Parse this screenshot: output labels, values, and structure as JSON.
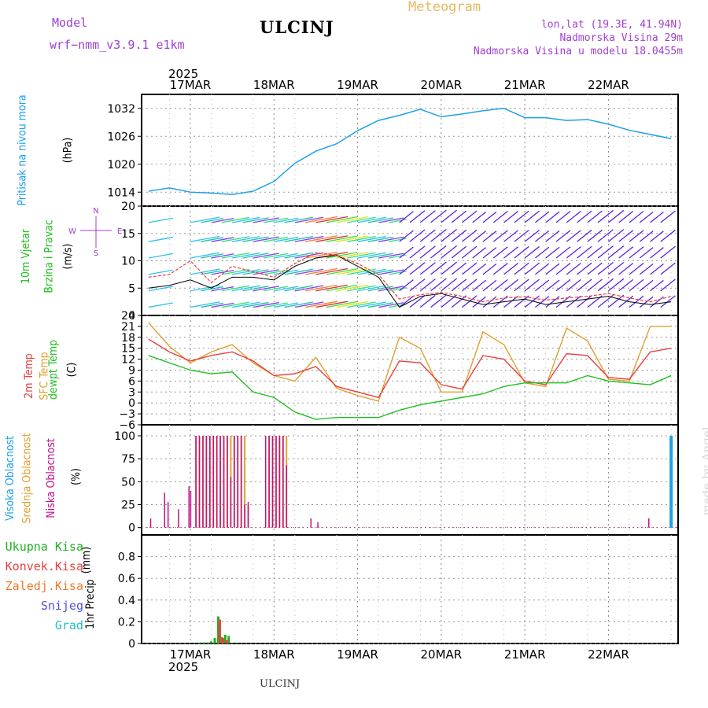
{
  "header": {
    "model_label": "Model",
    "model_value": "wrf−nmm_v3.9.1  e1km",
    "station": "ULCINJ",
    "meteogram": "Meteogram",
    "lonlat": "lon,lat (19.3E, 41.94N)",
    "elev": "Nadmorska Visina 29m",
    "elev_model": "Nadmorska Visina u modelu 18.0455m",
    "year_top": "2025",
    "year_bottom": "2025",
    "footer_station": "ULCINJ",
    "credit": "made by Angel"
  },
  "colors": {
    "pressure": "#1ea0e8",
    "temp2m": "#e84040",
    "sfc": "#e0a030",
    "dewpt": "#20c020",
    "high_cloud": "#1ea0e8",
    "mid_cloud": "#e0a030",
    "low_cloud": "#c0108a",
    "precip_total": "#20b020",
    "precip_conv": "#e84040",
    "precip_frz": "#f07828",
    "snow": "#5050e0",
    "graupel": "#20c0c0"
  },
  "chart_data": [
    {
      "type": "line",
      "panel": "pressure",
      "ylabel": "Pritisak na nivou mora",
      "unit": "(hPa)",
      "ylim": [
        1011,
        1035
      ],
      "yticks": [
        1014,
        1020,
        1026,
        1032
      ],
      "x_dates": [
        "17MAR",
        "18MAR",
        "19MAR",
        "20MAR",
        "21MAR",
        "22MAR"
      ],
      "x_hours": [
        -12,
        -6,
        0,
        6,
        12,
        18,
        24,
        30,
        36,
        42,
        48,
        54,
        60,
        66,
        72,
        78,
        84,
        90,
        96,
        102,
        108,
        114,
        120,
        126,
        132,
        138
      ],
      "series": [
        {
          "values": [
            1014.2,
            1014.9,
            1014.0,
            1013.8,
            1013.5,
            1014.2,
            1016.3,
            1020.2,
            1022.8,
            1024.4,
            1027.2,
            1029.4,
            1030.5,
            1031.8,
            1030.2,
            1030.8,
            1031.5,
            1032.0,
            1030.0,
            1030.0,
            1029.4,
            1029.6,
            1028.6,
            1027.3,
            1026.4,
            1025.5
          ]
        }
      ],
      "grid": true
    },
    {
      "type": "line",
      "panel": "wind",
      "ylabel": "10m Vjetar Brzina i Pravac",
      "unit": "(m/s)",
      "ylim": [
        0,
        20
      ],
      "yticks": [
        0,
        5,
        10,
        15,
        20
      ],
      "compass": [
        "N",
        "S",
        "W",
        "E"
      ],
      "x_hours": [
        -12,
        -6,
        0,
        6,
        12,
        18,
        24,
        30,
        36,
        42,
        48,
        54,
        60,
        66,
        72,
        78,
        84,
        90,
        96,
        102,
        108,
        114,
        120,
        126,
        132,
        138
      ],
      "series": [
        {
          "values": [
            5.0,
            5.5,
            6.5,
            5.0,
            7.0,
            7.0,
            6.5,
            9.0,
            10.5,
            11.0,
            9.0,
            7.0,
            1.5,
            3.5,
            4.0,
            3.0,
            2.0,
            2.5,
            3.0,
            2.0,
            2.5,
            3.0,
            3.5,
            2.5,
            2.0,
            2.5
          ]
        },
        {
          "values": [
            7.0,
            7.5,
            10.0,
            6.0,
            9.0,
            8.0,
            7.0,
            9.5,
            11.5,
            11.0,
            9.5,
            7.5,
            3.0,
            3.8,
            4.2,
            3.5,
            2.5,
            3.2,
            3.4,
            2.8,
            3.2,
            3.5,
            4.0,
            3.2,
            2.5,
            3.5
          ]
        }
      ],
      "grid": true
    },
    {
      "type": "line",
      "panel": "temperature",
      "ylabel": [
        "2m Temp",
        "SFC Temp",
        "dewpt Temp"
      ],
      "unit": "(C)",
      "ylim": [
        -6,
        24
      ],
      "yticks": [
        -6,
        -3,
        0,
        3,
        6,
        9,
        12,
        15,
        18,
        21,
        24
      ],
      "x_hours": [
        -12,
        -6,
        0,
        6,
        12,
        18,
        24,
        30,
        36,
        42,
        48,
        54,
        60,
        66,
        72,
        78,
        84,
        90,
        96,
        102,
        108,
        114,
        120,
        126,
        132,
        138
      ],
      "series": [
        {
          "name": "2m Temp",
          "values": [
            17.5,
            14.0,
            11.5,
            13.0,
            14.0,
            11.5,
            7.5,
            8.0,
            10.0,
            4.5,
            3.0,
            1.5,
            11.5,
            11.0,
            5.0,
            3.8,
            13.0,
            12.0,
            6.0,
            5.0,
            13.5,
            13.0,
            7.0,
            6.5,
            14.0,
            15.0
          ]
        },
        {
          "name": "SFC Temp",
          "values": [
            22.0,
            15.5,
            11.0,
            14.0,
            16.0,
            11.0,
            7.5,
            6.0,
            12.5,
            4.0,
            2.0,
            0.5,
            18.0,
            15.0,
            3.0,
            3.0,
            19.5,
            16.0,
            5.5,
            4.5,
            20.5,
            17.0,
            6.5,
            6.0,
            21.0,
            21.0
          ]
        },
        {
          "name": "dewpt Temp",
          "values": [
            13.0,
            11.0,
            9.0,
            8.0,
            8.5,
            3.0,
            1.5,
            -2.5,
            -4.5,
            -4.0,
            -4.0,
            -4.0,
            -2.0,
            -0.5,
            0.5,
            1.5,
            2.5,
            4.5,
            5.5,
            5.5,
            5.5,
            7.5,
            6.0,
            5.5,
            5.0,
            7.5
          ]
        }
      ],
      "grid": true
    },
    {
      "type": "bar",
      "panel": "cloud",
      "ylabel": [
        "Visoka Oblacnost",
        "Srednja Oblacnost",
        "Niska Oblacnost"
      ],
      "unit": "(%)",
      "ylim": [
        0,
        100
      ],
      "yticks": [
        0,
        25,
        50,
        75,
        100
      ],
      "series": [
        {
          "name": "Visoka Oblacnost",
          "x": [
            138
          ],
          "values": [
            100
          ]
        },
        {
          "name": "Srednja Oblacnost",
          "x": [
            1,
            2,
            3,
            4,
            5,
            6,
            7,
            8,
            9,
            10,
            11,
            12,
            13,
            14,
            15,
            16,
            22,
            23,
            24,
            25,
            26,
            27
          ],
          "values": [
            100,
            100,
            100,
            100,
            100,
            100,
            100,
            100,
            100,
            100,
            100,
            100,
            100,
            100,
            100,
            25,
            100,
            100,
            100,
            100,
            100,
            100
          ]
        },
        {
          "name": "Niska Oblacnost",
          "x": [
            -11,
            -7,
            -6,
            -3,
            0,
            0.5,
            2,
            3,
            4,
            5,
            6,
            7,
            8,
            9,
            10,
            11,
            12,
            13,
            14,
            15,
            16,
            17,
            22,
            23,
            24,
            25,
            26,
            27,
            28,
            35,
            37,
            132
          ],
          "values": [
            10,
            38,
            28,
            20,
            45,
            40,
            100,
            100,
            100,
            100,
            100,
            100,
            100,
            100,
            100,
            100,
            55,
            100,
            100,
            100,
            25,
            28,
            100,
            100,
            100,
            100,
            100,
            100,
            68,
            10,
            6,
            10
          ]
        }
      ],
      "grid": true
    },
    {
      "type": "bar",
      "panel": "precip",
      "ylabel": "1hr Precip",
      "unit": "(mm)",
      "ylim": [
        0,
        1.0
      ],
      "yticks": [
        0,
        0.2,
        0.4,
        0.6,
        0.8
      ],
      "series": [
        {
          "name": "Ukupna Kisa",
          "x": [
            3,
            4,
            5,
            6,
            7,
            8,
            9,
            10,
            11
          ],
          "values": [
            0.01,
            0.01,
            0.01,
            0.02,
            0.05,
            0.25,
            0.06,
            0.08,
            0.07
          ]
        },
        {
          "name": "Konvek.Kisa",
          "x": [
            8,
            9,
            10
          ],
          "values": [
            0.22,
            0.05,
            0.03
          ]
        },
        {
          "name": "Zaledj.Kisa",
          "x": [],
          "values": []
        },
        {
          "name": "Snijeg",
          "x": [],
          "values": []
        },
        {
          "name": "Grad",
          "x": [],
          "values": []
        }
      ],
      "grid": true
    }
  ]
}
